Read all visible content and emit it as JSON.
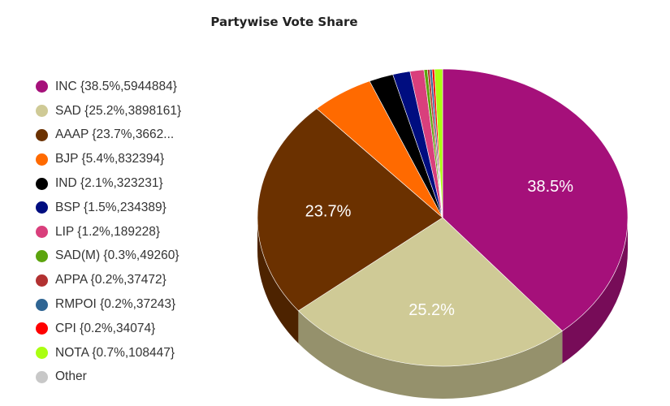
{
  "chart_data": {
    "type": "pie",
    "title": "Partywise Vote Share",
    "legend_position": "left",
    "style": "3d",
    "slices": [
      {
        "name": "INC",
        "legend": "INC {38.5%,5944884}",
        "percent": 38.5,
        "votes": 5944884,
        "color": "#a5107a",
        "label": "38.5%"
      },
      {
        "name": "SAD",
        "legend": "SAD {25.2%,3898161}",
        "percent": 25.2,
        "votes": 3898161,
        "color": "#cfca96",
        "label": "25.2%"
      },
      {
        "name": "AAAP",
        "legend": "AAAP {23.7%,3662...",
        "percent": 23.7,
        "votes": null,
        "color": "#6b3100",
        "label": "23.7%"
      },
      {
        "name": "BJP",
        "legend": "BJP {5.4%,832394}",
        "percent": 5.4,
        "votes": 832394,
        "color": "#ff6a00",
        "label": ""
      },
      {
        "name": "IND",
        "legend": "IND {2.1%,323231}",
        "percent": 2.1,
        "votes": 323231,
        "color": "#000000",
        "label": ""
      },
      {
        "name": "BSP",
        "legend": "BSP {1.5%,234389}",
        "percent": 1.5,
        "votes": 234389,
        "color": "#000d80",
        "label": ""
      },
      {
        "name": "LIP",
        "legend": "LIP {1.2%,189228}",
        "percent": 1.2,
        "votes": 189228,
        "color": "#d93f7c",
        "label": ""
      },
      {
        "name": "SAD(M)",
        "legend": "SAD(M) {0.3%,49260}",
        "percent": 0.3,
        "votes": 49260,
        "color": "#5ca40e",
        "label": ""
      },
      {
        "name": "APPA",
        "legend": "APPA {0.2%,37472}",
        "percent": 0.2,
        "votes": 37472,
        "color": "#b23131",
        "label": ""
      },
      {
        "name": "RMPOI",
        "legend": "RMPOI {0.2%,37243}",
        "percent": 0.2,
        "votes": 37243,
        "color": "#2f6593",
        "label": ""
      },
      {
        "name": "CPI",
        "legend": "CPI {0.2%,34074}",
        "percent": 0.2,
        "votes": 34074,
        "color": "#ff0000",
        "label": ""
      },
      {
        "name": "NOTA",
        "legend": "NOTA {0.7%,108447}",
        "percent": 0.7,
        "votes": 108447,
        "color": "#aaff11",
        "label": ""
      },
      {
        "name": "Other",
        "legend": "Other",
        "percent": 0,
        "votes": null,
        "color": "#c8c8c8",
        "label": ""
      }
    ]
  }
}
